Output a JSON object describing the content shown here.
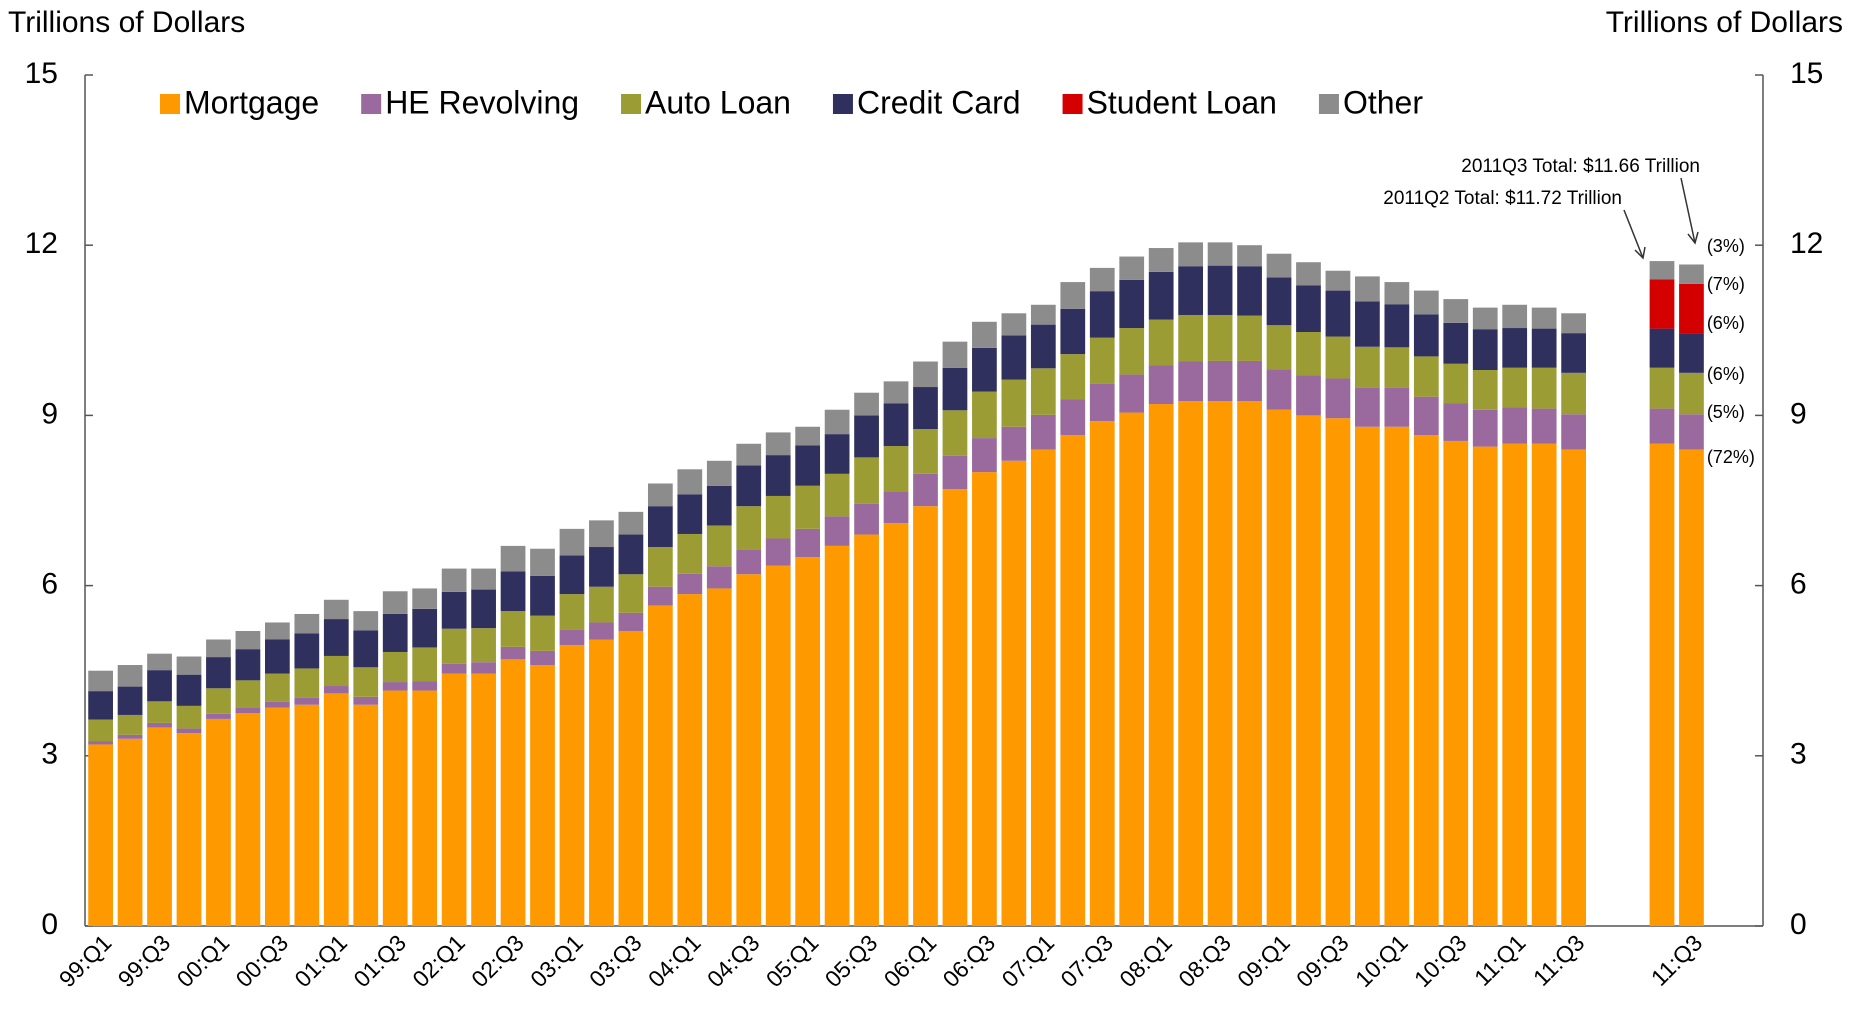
{
  "chart_data": {
    "type": "stacked-bar",
    "y_axis_label": "Trillions of Dollars",
    "y2_axis_label": "Trillions of Dollars",
    "ylim": [
      0,
      15
    ],
    "yticks": [
      0,
      3,
      6,
      9,
      12,
      15
    ],
    "y2lim": [
      0,
      15
    ],
    "y2ticks": [
      0,
      3,
      6,
      9,
      12,
      15
    ],
    "grid": false,
    "legend": "top",
    "categories": [
      "99:Q1",
      null,
      "99:Q3",
      null,
      "00:Q1",
      null,
      "00:Q3",
      null,
      "01:Q1",
      null,
      "01:Q3",
      null,
      "02:Q1",
      null,
      "02:Q3",
      null,
      "03:Q1",
      null,
      "03:Q3",
      null,
      "04:Q1",
      null,
      "04:Q3",
      null,
      "05:Q1",
      null,
      "05:Q3",
      null,
      "06:Q1",
      null,
      "06:Q3",
      null,
      "07:Q1",
      null,
      "07:Q3",
      null,
      "08:Q1",
      null,
      "08:Q3",
      null,
      "09:Q1",
      null,
      "09:Q3",
      null,
      "10:Q1",
      null,
      "10:Q3",
      null,
      "11:Q1",
      null,
      "11:Q3",
      null,
      null,
      null,
      "11:Q3"
    ],
    "series": [
      {
        "name": "Mortgage",
        "color": "#ff9900",
        "values": [
          3.2,
          3.3,
          3.5,
          3.4,
          3.65,
          3.75,
          3.85,
          3.9,
          4.1,
          3.9,
          4.15,
          4.15,
          4.45,
          4.45,
          4.7,
          4.6,
          4.95,
          5.05,
          5.2,
          5.65,
          5.85,
          5.95,
          6.2,
          6.35,
          6.5,
          6.7,
          6.9,
          7.1,
          7.4,
          7.7,
          8.0,
          8.2,
          8.4,
          8.65,
          8.9,
          9.05,
          9.2,
          9.25,
          9.25,
          9.25,
          9.1,
          9.0,
          8.95,
          8.8,
          8.8,
          8.65,
          8.55,
          8.45,
          8.5,
          8.5,
          8.4,
          null,
          null,
          8.5,
          8.4
        ]
      },
      {
        "name": "HE Revolving",
        "color": "#9a6a9e",
        "values": [
          0.06,
          0.07,
          0.08,
          0.08,
          0.09,
          0.1,
          0.1,
          0.12,
          0.13,
          0.14,
          0.15,
          0.16,
          0.17,
          0.2,
          0.22,
          0.25,
          0.28,
          0.3,
          0.32,
          0.33,
          0.36,
          0.39,
          0.44,
          0.48,
          0.5,
          0.52,
          0.54,
          0.56,
          0.57,
          0.59,
          0.6,
          0.6,
          0.61,
          0.63,
          0.66,
          0.67,
          0.68,
          0.7,
          0.71,
          0.71,
          0.71,
          0.71,
          0.7,
          0.69,
          0.69,
          0.68,
          0.66,
          0.65,
          0.64,
          0.62,
          0.62,
          null,
          null,
          0.62,
          0.62
        ]
      },
      {
        "name": "Auto Loan",
        "color": "#9c9c35",
        "values": [
          0.38,
          0.35,
          0.38,
          0.4,
          0.45,
          0.48,
          0.5,
          0.52,
          0.53,
          0.52,
          0.53,
          0.6,
          0.62,
          0.6,
          0.63,
          0.62,
          0.62,
          0.63,
          0.68,
          0.7,
          0.7,
          0.72,
          0.76,
          0.75,
          0.76,
          0.75,
          0.82,
          0.8,
          0.79,
          0.8,
          0.82,
          0.83,
          0.82,
          0.8,
          0.81,
          0.82,
          0.81,
          0.82,
          0.81,
          0.8,
          0.78,
          0.76,
          0.74,
          0.72,
          0.71,
          0.71,
          0.7,
          0.7,
          0.7,
          0.72,
          0.73,
          null,
          null,
          0.72,
          0.73
        ]
      },
      {
        "name": "Credit Card",
        "color": "#30305f",
        "values": [
          0.5,
          0.5,
          0.55,
          0.55,
          0.55,
          0.55,
          0.6,
          0.62,
          0.65,
          0.65,
          0.67,
          0.68,
          0.65,
          0.68,
          0.7,
          0.7,
          0.68,
          0.7,
          0.7,
          0.72,
          0.7,
          0.7,
          0.72,
          0.72,
          0.71,
          0.7,
          0.74,
          0.75,
          0.74,
          0.75,
          0.77,
          0.78,
          0.77,
          0.8,
          0.82,
          0.85,
          0.84,
          0.86,
          0.87,
          0.87,
          0.84,
          0.82,
          0.81,
          0.8,
          0.76,
          0.74,
          0.72,
          0.72,
          0.7,
          0.69,
          0.7,
          null,
          null,
          0.69,
          0.7
        ]
      },
      {
        "name": "Student Loan",
        "color": "#d40000",
        "values": [
          null,
          null,
          null,
          null,
          null,
          null,
          null,
          null,
          null,
          null,
          null,
          null,
          null,
          null,
          null,
          null,
          null,
          null,
          null,
          null,
          null,
          null,
          null,
          null,
          null,
          null,
          null,
          null,
          null,
          null,
          null,
          null,
          null,
          null,
          null,
          null,
          null,
          null,
          null,
          null,
          null,
          null,
          null,
          null,
          null,
          null,
          null,
          null,
          null,
          null,
          null,
          null,
          null,
          0.87,
          0.87
        ]
      },
      {
        "name": "Other",
        "color": "#8c8c8c",
        "values": [
          0.36,
          0.38,
          0.29,
          0.32,
          0.31,
          0.32,
          0.3,
          0.34,
          0.34,
          0.34,
          0.4,
          0.36,
          0.41,
          0.37,
          0.45,
          0.48,
          0.47,
          0.47,
          0.4,
          0.4,
          0.44,
          0.44,
          0.38,
          0.4,
          0.33,
          0.43,
          0.4,
          0.39,
          0.45,
          0.46,
          0.46,
          0.39,
          0.35,
          0.47,
          0.41,
          0.41,
          0.42,
          0.42,
          0.41,
          0.37,
          0.42,
          0.41,
          0.35,
          0.44,
          0.39,
          0.42,
          0.42,
          0.38,
          0.41,
          0.37,
          0.35,
          null,
          null,
          0.32,
          0.34
        ]
      }
    ],
    "annotations": {
      "totals": [
        "2011Q3 Total:  $11.66 Trillion",
        "2011Q2 Total:  $11.72 Trillion"
      ],
      "shares": [
        "(3%)",
        "(7%)",
        "(6%)",
        "(6%)",
        "(5%)",
        "(72%)"
      ]
    }
  }
}
